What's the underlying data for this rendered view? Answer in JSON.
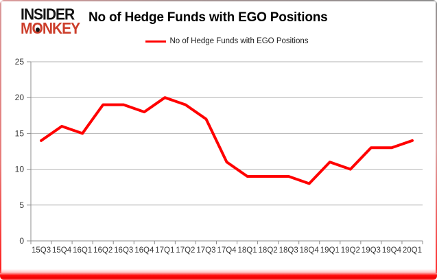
{
  "logo": {
    "line1": "INSIDER",
    "line2_parts": {
      "pre": "M",
      "o": "O",
      "post": "NKEY"
    }
  },
  "header": {
    "title": "No of Hedge Funds with EGO Positions"
  },
  "legend": {
    "label": "No of Hedge Funds with EGO Positions"
  },
  "chart_data": {
    "type": "line",
    "title": "No of Hedge Funds with EGO Positions",
    "categories": [
      "15Q3",
      "15Q4",
      "16Q1",
      "16Q2",
      "16Q3",
      "16Q4",
      "17Q1",
      "17Q2",
      "17Q3",
      "17Q4",
      "18Q1",
      "18Q2",
      "18Q3",
      "18Q4",
      "19Q1",
      "19Q2",
      "19Q3",
      "19Q4",
      "20Q1"
    ],
    "series": [
      {
        "name": "No of Hedge Funds with EGO Positions",
        "values": [
          14,
          16,
          15,
          19,
          19,
          18,
          20,
          19,
          17,
          11,
          9,
          9,
          9,
          8,
          11,
          10,
          13,
          13,
          14
        ]
      }
    ],
    "xlabel": "",
    "ylabel": "",
    "ylim": [
      0,
      25
    ],
    "yticks": [
      0,
      5,
      10,
      15,
      20,
      25
    ],
    "grid": true,
    "legend_position": "top-center",
    "line_color": "#ff0000"
  },
  "colors": {
    "line": "#ff0000",
    "gridline": "#b3b3b3",
    "axis": "#8c8c8c",
    "label": "#383838",
    "logo_black": "#141414",
    "logo_red": "#cc3e2b"
  }
}
